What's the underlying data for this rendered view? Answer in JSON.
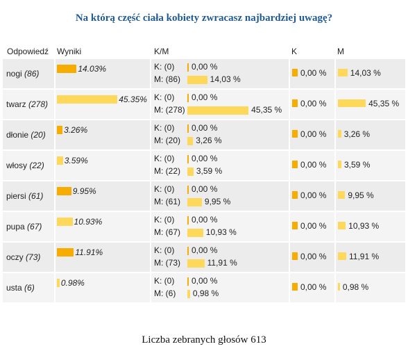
{
  "title": "Na którą część ciała kobiety zwracasz najbardziej uwagę?",
  "table": {
    "header": [
      "Odpowiedź",
      "Wyniki",
      "K/M",
      "K",
      "M"
    ],
    "rows": [
      {
        "answer": "nogi",
        "count": "(86)",
        "share": {
          "value": 14.03,
          "label": "14.03%"
        },
        "k_count": "K: (0)",
        "k_share": {
          "value": 0,
          "label": "0,00 %"
        },
        "m_count": "M: (86)",
        "m_share": {
          "value": 14.03,
          "label": "14,03 %"
        },
        "k_total": {
          "value": 0,
          "label": "0,00 %"
        },
        "m_total": {
          "value": 14.03,
          "label": "14,03 %"
        }
      },
      {
        "answer": "twarz",
        "count": "(278)",
        "share": {
          "value": 45.35,
          "label": "45.35%"
        },
        "k_count": "K: (0)",
        "k_share": {
          "value": 0,
          "label": "0,00 %"
        },
        "m_count": "M: (278)",
        "m_share": {
          "value": 45.35,
          "label": "45,35 %"
        },
        "k_total": {
          "value": 0,
          "label": "0,00 %"
        },
        "m_total": {
          "value": 45.35,
          "label": "45,35 %"
        }
      },
      {
        "answer": "dłonie",
        "count": "(20)",
        "share": {
          "value": 3.26,
          "label": "3.26%"
        },
        "k_count": "K: (0)",
        "k_share": {
          "value": 0,
          "label": "0,00 %"
        },
        "m_count": "M: (20)",
        "m_share": {
          "value": 3.26,
          "label": "3,26 %"
        },
        "k_total": {
          "value": 0,
          "label": "0,00 %"
        },
        "m_total": {
          "value": 3.26,
          "label": "3,26 %"
        }
      },
      {
        "answer": "włosy",
        "count": "(22)",
        "share": {
          "value": 3.59,
          "label": "3.59%"
        },
        "k_count": "K: (0)",
        "k_share": {
          "value": 0,
          "label": "0,00 %"
        },
        "m_count": "M: (22)",
        "m_share": {
          "value": 3.59,
          "label": "3,59 %"
        },
        "k_total": {
          "value": 0,
          "label": "0,00 %"
        },
        "m_total": {
          "value": 3.59,
          "label": "3,59 %"
        }
      },
      {
        "answer": "piersi",
        "count": "(61)",
        "share": {
          "value": 9.95,
          "label": "9.95%"
        },
        "k_count": "K: (0)",
        "k_share": {
          "value": 0,
          "label": "0,00 %"
        },
        "m_count": "M: (61)",
        "m_share": {
          "value": 9.95,
          "label": "9,95 %"
        },
        "k_total": {
          "value": 0,
          "label": "0,00 %"
        },
        "m_total": {
          "value": 9.95,
          "label": "9,95 %"
        }
      },
      {
        "answer": "pupa",
        "count": "(67)",
        "share": {
          "value": 10.93,
          "label": "10.93%"
        },
        "k_count": "K: (0)",
        "k_share": {
          "value": 0,
          "label": "0,00 %"
        },
        "m_count": "M: (67)",
        "m_share": {
          "value": 10.93,
          "label": "10,93 %"
        },
        "k_total": {
          "value": 0,
          "label": "0,00 %"
        },
        "m_total": {
          "value": 10.93,
          "label": "10,93 %"
        }
      },
      {
        "answer": "oczy",
        "count": "(73)",
        "share": {
          "value": 11.91,
          "label": "11.91%"
        },
        "k_count": "K: (0)",
        "k_share": {
          "value": 0,
          "label": "0,00 %"
        },
        "m_count": "M: (73)",
        "m_share": {
          "value": 11.91,
          "label": "11,91 %"
        },
        "k_total": {
          "value": 0,
          "label": "0,00 %"
        },
        "m_total": {
          "value": 11.91,
          "label": "11,91 %"
        }
      },
      {
        "answer": "usta",
        "count": "(6)",
        "share": {
          "value": 0.98,
          "label": "0.98%"
        },
        "k_count": "K: (0)",
        "k_share": {
          "value": 0,
          "label": "0,00 %"
        },
        "m_count": "M: (6)",
        "m_share": {
          "value": 0.98,
          "label": "0,98 %"
        },
        "k_total": {
          "value": 0,
          "label": "0,00 %"
        },
        "m_total": {
          "value": 0.98,
          "label": "0,98 %"
        }
      }
    ]
  },
  "footer": "Liczba zebranych głosów 613"
}
